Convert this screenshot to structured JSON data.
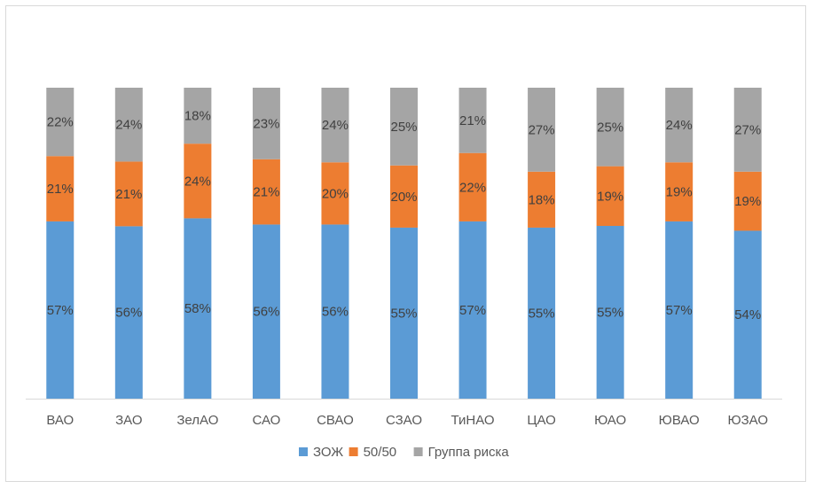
{
  "chart_data": {
    "type": "bar",
    "stacked": true,
    "percent_stacked": true,
    "title": "",
    "xlabel": "",
    "ylabel": "",
    "ylim": [
      0,
      100
    ],
    "grid": false,
    "legend_position": "bottom",
    "categories": [
      "ВАО",
      "ЗАО",
      "ЗелАО",
      "САО",
      "СВАО",
      "СЗАО",
      "ТиНАО",
      "ЦАО",
      "ЮАО",
      "ЮВАО",
      "ЮЗАО"
    ],
    "series": [
      {
        "name": "ЗОЖ",
        "color": "#5b9bd5",
        "values": [
          57,
          56,
          58,
          56,
          56,
          55,
          57,
          55,
          55,
          57,
          54
        ],
        "labels": [
          "57%",
          "56%",
          "58%",
          "56%",
          "56%",
          "55%",
          "57%",
          "55%",
          "55%",
          "57%",
          "54%"
        ]
      },
      {
        "name": "50/50",
        "color": "#ed7d31",
        "values": [
          21,
          21,
          24,
          21,
          20,
          20,
          22,
          18,
          19,
          19,
          19
        ],
        "labels": [
          "21%",
          "21%",
          "24%",
          "21%",
          "20%",
          "20%",
          "22%",
          "18%",
          "19%",
          "19%",
          "19%"
        ]
      },
      {
        "name": "Группа риска",
        "color": "#a5a5a5",
        "values": [
          22,
          24,
          18,
          23,
          24,
          25,
          21,
          27,
          25,
          24,
          27
        ],
        "labels": [
          "22%",
          "24%",
          "18%",
          "23%",
          "24%",
          "25%",
          "21%",
          "27%",
          "25%",
          "24%",
          "27%"
        ]
      }
    ]
  }
}
